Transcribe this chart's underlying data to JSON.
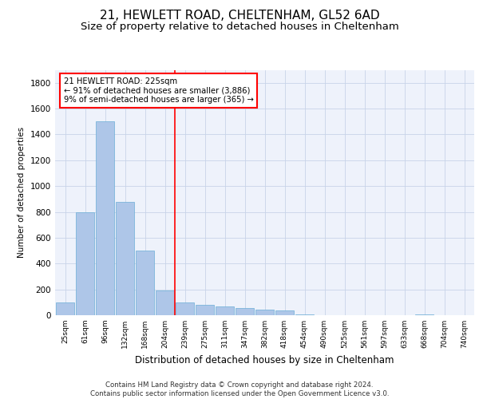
{
  "title1": "21, HEWLETT ROAD, CHELTENHAM, GL52 6AD",
  "title2": "Size of property relative to detached houses in Cheltenham",
  "xlabel": "Distribution of detached houses by size in Cheltenham",
  "ylabel": "Number of detached properties",
  "categories": [
    "25sqm",
    "61sqm",
    "96sqm",
    "132sqm",
    "168sqm",
    "204sqm",
    "239sqm",
    "275sqm",
    "311sqm",
    "347sqm",
    "382sqm",
    "418sqm",
    "454sqm",
    "490sqm",
    "525sqm",
    "561sqm",
    "597sqm",
    "633sqm",
    "668sqm",
    "704sqm",
    "740sqm"
  ],
  "values": [
    100,
    800,
    1500,
    880,
    500,
    190,
    100,
    80,
    70,
    55,
    45,
    40,
    5,
    0,
    0,
    0,
    0,
    0,
    5,
    0,
    0
  ],
  "bar_color": "#aec6e8",
  "bar_edge_color": "#6aaed6",
  "red_line_x": 5.5,
  "annotation_line1": "21 HEWLETT ROAD: 225sqm",
  "annotation_line2": "← 91% of detached houses are smaller (3,886)",
  "annotation_line3": "9% of semi-detached houses are larger (365) →",
  "ylim": [
    0,
    1900
  ],
  "yticks": [
    0,
    200,
    400,
    600,
    800,
    1000,
    1200,
    1400,
    1600,
    1800
  ],
  "footer_line1": "Contains HM Land Registry data © Crown copyright and database right 2024.",
  "footer_line2": "Contains public sector information licensed under the Open Government Licence v3.0.",
  "bg_color": "#eef2fb",
  "grid_color": "#c8d4e8",
  "title1_fontsize": 11,
  "title2_fontsize": 9.5
}
